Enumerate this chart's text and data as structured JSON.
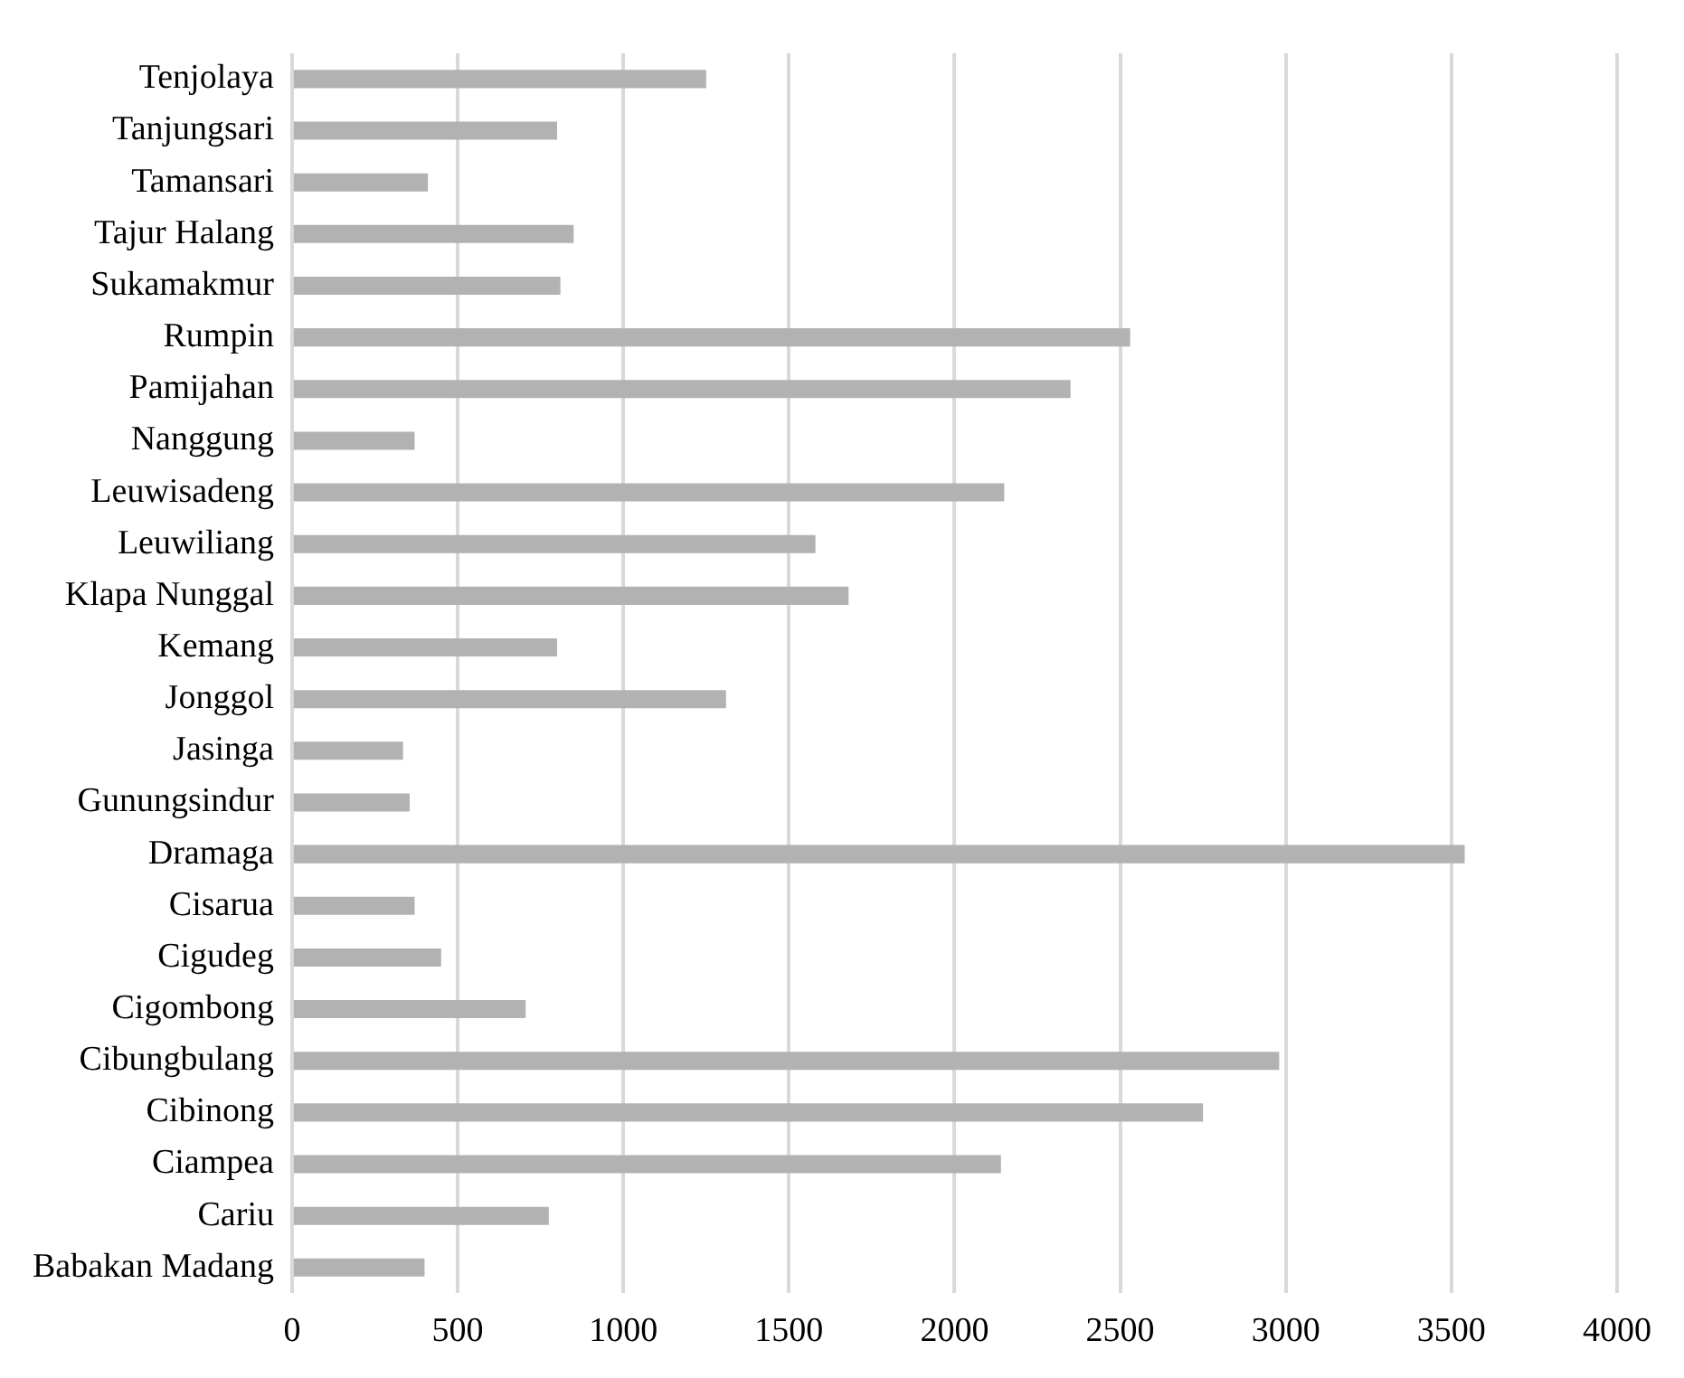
{
  "chart_data": {
    "type": "bar",
    "orientation": "horizontal",
    "categories": [
      "Tenjolaya",
      "Tanjungsari",
      "Tamansari",
      "Tajur Halang",
      "Sukamakmur",
      "Rumpin",
      "Pamijahan",
      "Nanggung",
      "Leuwisadeng",
      "Leuwiliang",
      "Klapa Nunggal",
      "Kemang",
      "Jonggol",
      "Jasinga",
      "Gunungsindur",
      "Dramaga",
      "Cisarua",
      "Cigudeg",
      "Cigombong",
      "Cibungbulang",
      "Cibinong",
      "Ciampea",
      "Cariu",
      "Babakan Madang"
    ],
    "values": [
      1250,
      800,
      410,
      850,
      810,
      2530,
      2350,
      370,
      2150,
      1580,
      1680,
      800,
      1310,
      335,
      355,
      3540,
      370,
      450,
      705,
      2980,
      2750,
      2140,
      775,
      400
    ],
    "color": "#b2b2b2",
    "xlim": [
      0,
      4000
    ],
    "xticks": [
      0,
      500,
      1000,
      1500,
      2000,
      2500,
      3000,
      3500,
      4000
    ],
    "grid": "x",
    "legend": false
  }
}
